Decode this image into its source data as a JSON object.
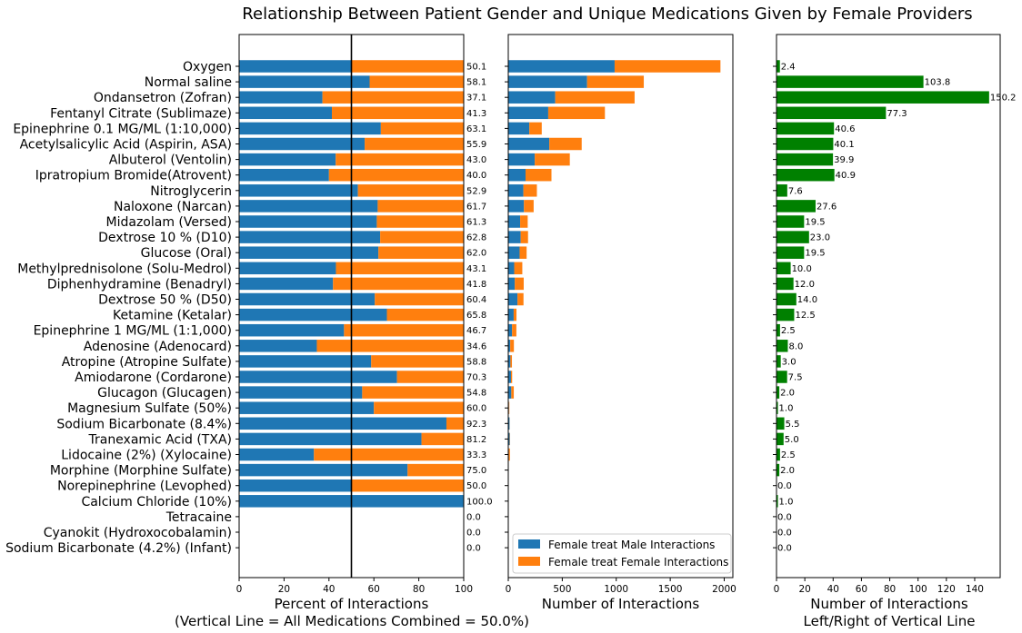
{
  "figure_title": "Relationship Between Patient Gender and Unique Medications Given by Female Providers",
  "colors": {
    "male": "#1f77b4",
    "female": "#ff7f0e",
    "diff": "#008000",
    "reference_line": "#000000"
  },
  "chart_data": [
    {
      "type": "bar",
      "orientation": "horizontal",
      "stacked": true,
      "xlabel": "Percent of Interactions",
      "xlabel2": "(Vertical Line = All Medications Combined = 50.0%)",
      "xlim": [
        0,
        100
      ],
      "xticks": [
        0,
        20,
        40,
        60,
        80,
        100
      ],
      "reference_line": 50.0,
      "categories": [
        "Oxygen",
        "Normal saline",
        "Ondansetron (Zofran)",
        "Fentanyl Citrate (Sublimaze)",
        "Epinephrine 0.1 MG/ML (1:10,000)",
        "Acetylsalicylic Acid (Aspirin, ASA)",
        "Albuterol (Ventolin)",
        "Ipratropium Bromide(Atrovent)",
        "Nitroglycerin",
        "Naloxone (Narcan)",
        "Midazolam (Versed)",
        "Dextrose 10 % (D10)",
        "Glucose (Oral)",
        "Methylprednisolone (Solu-Medrol)",
        "Diphenhydramine (Benadryl)",
        "Dextrose 50 % (D50)",
        "Ketamine (Ketalar)",
        "Epinephrine 1 MG/ML (1:1,000)",
        "Adenosine (Adenocard)",
        "Atropine (Atropine Sulfate)",
        "Amiodarone (Cordarone)",
        "Glucagon (Glucagen)",
        "Magnesium Sulfate (50%)",
        "Sodium Bicarbonate (8.4%)",
        "Tranexamic Acid (TXA)",
        "Lidocaine (2%) (Xylocaine)",
        "Morphine (Morphine Sulfate)",
        "Norepinephrine (Levophed)",
        "Calcium Chloride (10%)",
        "Tetracaine",
        "Cyanokit (Hydroxocobalamin)",
        "Sodium Bicarbonate (4.2%) (Infant)"
      ],
      "series": [
        {
          "key": "male",
          "values": [
            50.1,
            58.1,
            37.1,
            41.3,
            63.1,
            55.9,
            43.0,
            40.0,
            52.9,
            61.7,
            61.3,
            62.8,
            62.0,
            43.1,
            41.8,
            60.4,
            65.8,
            46.7,
            34.6,
            58.8,
            70.3,
            54.8,
            60.0,
            92.3,
            81.2,
            33.3,
            75.0,
            50.0,
            100.0,
            0.0,
            0.0,
            0.0
          ]
        },
        {
          "key": "female",
          "values": [
            49.9,
            41.9,
            62.9,
            58.7,
            36.9,
            44.1,
            57.0,
            60.0,
            47.1,
            38.3,
            38.7,
            37.2,
            38.0,
            56.9,
            58.2,
            39.6,
            34.2,
            53.3,
            65.4,
            41.2,
            29.7,
            45.2,
            40.0,
            7.7,
            18.8,
            66.7,
            25.0,
            50.0,
            0.0,
            0.0,
            0.0,
            0.0
          ]
        }
      ],
      "data_labels": [
        "50.1",
        "58.1",
        "37.1",
        "41.3",
        "63.1",
        "55.9",
        "43.0",
        "40.0",
        "52.9",
        "61.7",
        "61.3",
        "62.8",
        "62.0",
        "43.1",
        "41.8",
        "60.4",
        "65.8",
        "46.7",
        "34.6",
        "58.8",
        "70.3",
        "54.8",
        "60.0",
        "92.3",
        "81.2",
        "33.3",
        "75.0",
        "50.0",
        "100.0",
        "0.0",
        "0.0",
        "0.0"
      ]
    },
    {
      "type": "bar",
      "orientation": "horizontal",
      "stacked": true,
      "xlabel": "Number of Interactions",
      "xlim": [
        0,
        2080
      ],
      "xticks": [
        0,
        500,
        1000,
        1500,
        2000
      ],
      "legend_placement": "lower-right",
      "series": [
        {
          "key": "male",
          "name": "Female treat Male Interactions",
          "values": [
            985,
            730,
            435,
            370,
            195,
            380,
            245,
            160,
            140,
            145,
            110,
            115,
            105,
            55,
            60,
            85,
            50,
            35,
            18,
            20,
            25,
            28,
            6,
            12,
            13,
            5,
            3,
            1,
            1,
            0,
            0,
            0
          ]
        },
        {
          "key": "female",
          "name": "Female treat Female Interactions",
          "values": [
            980,
            525,
            735,
            525,
            115,
            300,
            325,
            240,
            125,
            90,
            70,
            68,
            65,
            75,
            83,
            56,
            26,
            40,
            34,
            14,
            11,
            23,
            4,
            1,
            3,
            10,
            1,
            1,
            0,
            0,
            0,
            0
          ]
        }
      ]
    },
    {
      "type": "bar",
      "orientation": "horizontal",
      "xlabel": "Number of Interactions",
      "xlabel2": "Left/Right of Vertical Line",
      "xlim": [
        0,
        158
      ],
      "xticks": [
        0,
        20,
        40,
        60,
        80,
        100,
        120,
        140
      ],
      "values": [
        2.4,
        103.8,
        150.2,
        77.3,
        40.6,
        40.1,
        39.9,
        40.9,
        7.6,
        27.6,
        19.5,
        23.0,
        19.5,
        10.0,
        12.0,
        14.0,
        12.5,
        2.5,
        8.0,
        3.0,
        7.5,
        2.0,
        1.0,
        5.5,
        5.0,
        2.5,
        2.0,
        0.0,
        1.0,
        0.0,
        0.0,
        0.0
      ],
      "data_labels": [
        "2.4",
        "103.8",
        "150.2",
        "77.3",
        "40.6",
        "40.1",
        "39.9",
        "40.9",
        "7.6",
        "27.6",
        "19.5",
        "23.0",
        "19.5",
        "10.0",
        "12.0",
        "14.0",
        "12.5",
        "2.5",
        "8.0",
        "3.0",
        "7.5",
        "2.0",
        "1.0",
        "5.5",
        "5.0",
        "2.5",
        "2.0",
        "0.0",
        "1.0",
        "0.0",
        "0.0",
        "0.0"
      ]
    }
  ]
}
